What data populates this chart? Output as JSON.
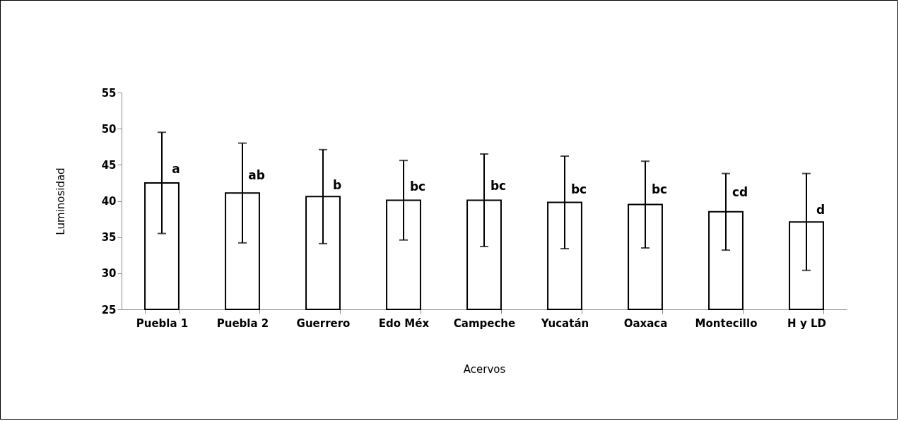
{
  "chart_data": {
    "type": "bar",
    "xlabel": "Acervos",
    "ylabel": "Luminosidad",
    "categories": [
      "Puebla 1",
      "Puebla 2",
      "Guerrero",
      "Edo Méx",
      "Campeche",
      "Yucatán",
      "Oaxaca",
      "Montecillo",
      "H y LD"
    ],
    "values": [
      42.5,
      41.1,
      40.6,
      40.1,
      40.1,
      39.8,
      39.5,
      38.5,
      37.1
    ],
    "errors": [
      7.0,
      6.9,
      6.5,
      5.5,
      6.4,
      6.4,
      6.0,
      5.3,
      6.7
    ],
    "color": "#ffffff",
    "ylim": [
      25,
      55
    ],
    "yticks": [
      25,
      30,
      35,
      40,
      45,
      50,
      55
    ],
    "grid": false,
    "annotations": [
      {
        "text": "a",
        "x": "Puebla 1",
        "y": 44.3
      },
      {
        "text": "ab",
        "x": "Puebla 2",
        "y": 43.5
      },
      {
        "text": "b",
        "x": "Guerrero",
        "y": 42.1
      },
      {
        "text": "bc",
        "x": "Edo Méx",
        "y": 41.9
      },
      {
        "text": "bc",
        "x": "Campeche",
        "y": 42.0
      },
      {
        "text": "bc",
        "x": "Yucatán",
        "y": 41.5
      },
      {
        "text": "bc",
        "x": "Oaxaca",
        "y": 41.5
      },
      {
        "text": "cd",
        "x": "Montecillo",
        "y": 41.1
      },
      {
        "text": "d",
        "x": "H y LD",
        "y": 38.7
      }
    ]
  }
}
